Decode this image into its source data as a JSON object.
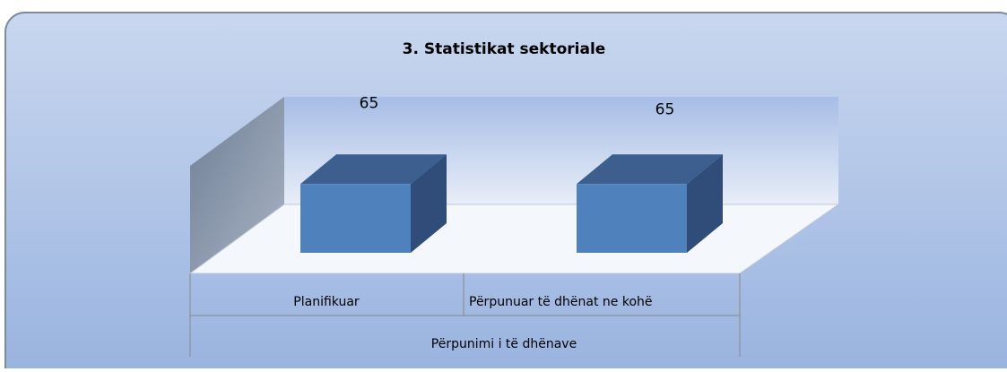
{
  "chart_data": {
    "type": "bar3d",
    "title": "3. Statistikat sektoriale",
    "categories": [
      "Planifikuar",
      "Përpunuar të dhënat ne kohë"
    ],
    "group": "Përpunimi i të dhënave",
    "values": [
      65,
      65
    ],
    "color": "#4f81bd"
  }
}
